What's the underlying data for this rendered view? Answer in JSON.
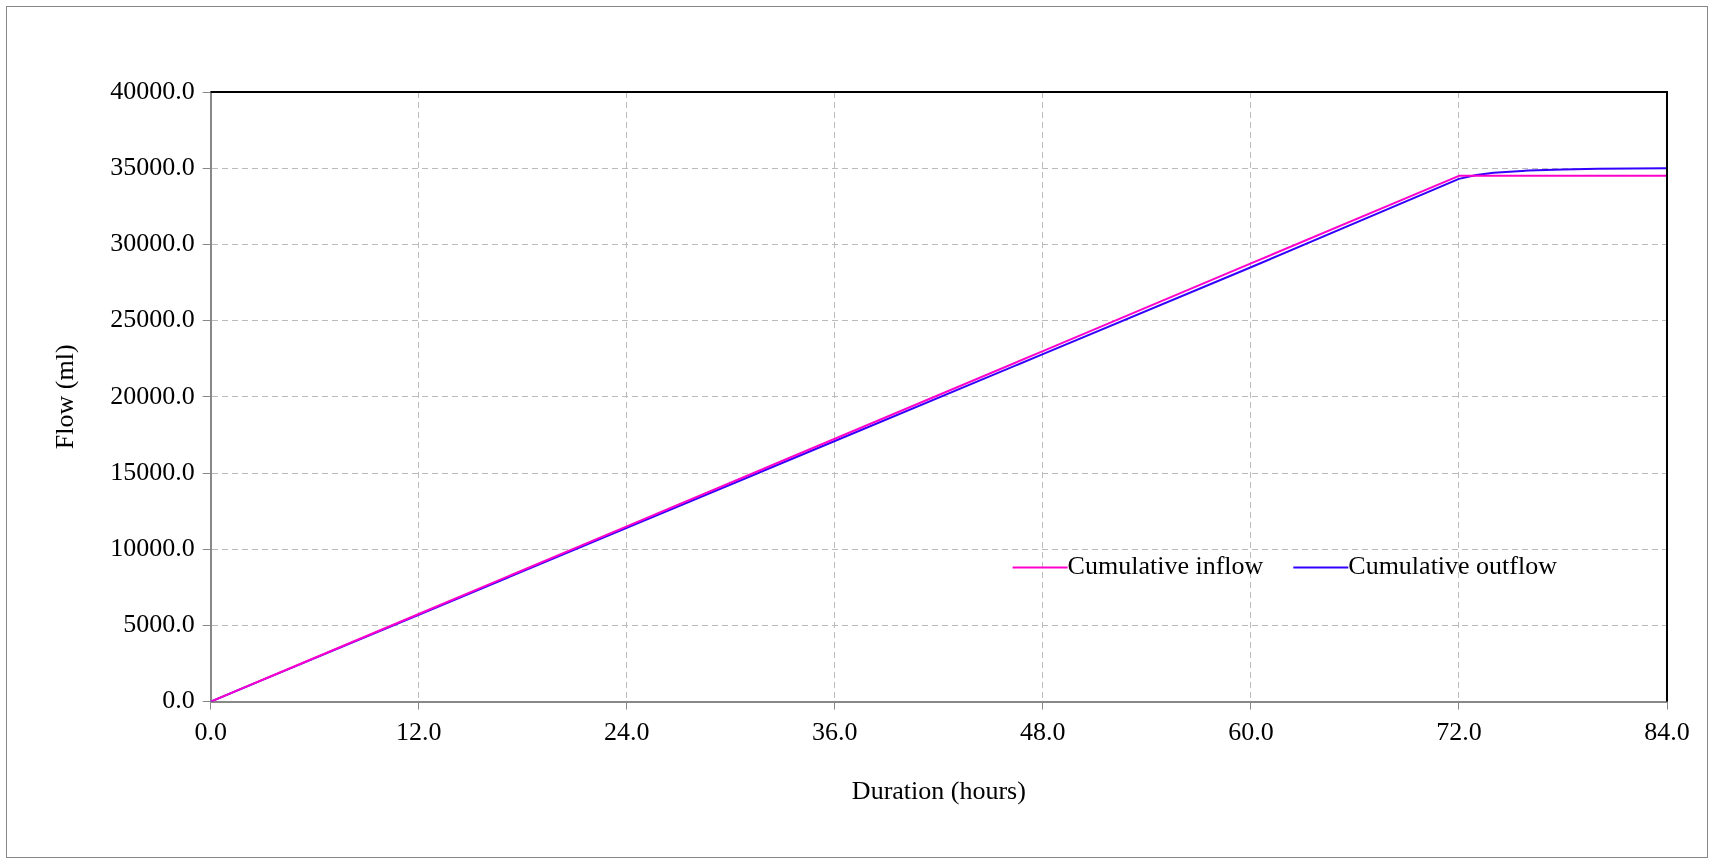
{
  "chart_data": {
    "type": "line",
    "xlabel": "Duration (hours)",
    "ylabel": "Flow (ml)",
    "xlim": [
      0,
      84
    ],
    "xticks": [
      {
        "value": 0,
        "label": "0.0"
      },
      {
        "value": 12,
        "label": "12.0"
      },
      {
        "value": 24,
        "label": "24.0"
      },
      {
        "value": 36,
        "label": "36.0"
      },
      {
        "value": 48,
        "label": "48.0"
      },
      {
        "value": 60,
        "label": "60.0"
      },
      {
        "value": 72,
        "label": "72.0"
      },
      {
        "value": 84,
        "label": "84.0"
      }
    ],
    "ylim": [
      0,
      40000
    ],
    "yticks": [
      {
        "value": 0,
        "label": "0.0"
      },
      {
        "value": 5000,
        "label": "5000.0"
      },
      {
        "value": 10000,
        "label": "10000.0"
      },
      {
        "value": 15000,
        "label": "15000.0"
      },
      {
        "value": 20000,
        "label": "20000.0"
      },
      {
        "value": 25000,
        "label": "25000.0"
      },
      {
        "value": 30000,
        "label": "30000.0"
      },
      {
        "value": 35000,
        "label": "35000.0"
      },
      {
        "value": 40000,
        "label": "40000.0"
      }
    ],
    "grid": true,
    "legend": "bottom right",
    "marker": "none",
    "line_style": "solid",
    "series": [
      {
        "name": "Cumulative inflow",
        "color": "#ff00cc",
        "x": [
          0,
          12,
          24,
          36,
          48,
          60,
          72,
          74,
          78,
          84
        ],
        "values": [
          0,
          5750,
          11500,
          17250,
          23000,
          28750,
          34500,
          34500,
          34500,
          34500
        ]
      },
      {
        "name": "Cumulative outflow",
        "color": "#3300ff",
        "x": [
          0,
          12,
          24,
          36,
          48,
          60,
          72,
          73,
          74,
          76,
          78,
          80,
          84
        ],
        "values": [
          0,
          5700,
          11400,
          17100,
          22800,
          28500,
          34300,
          34550,
          34700,
          34850,
          34920,
          34960,
          35000
        ]
      }
    ]
  }
}
